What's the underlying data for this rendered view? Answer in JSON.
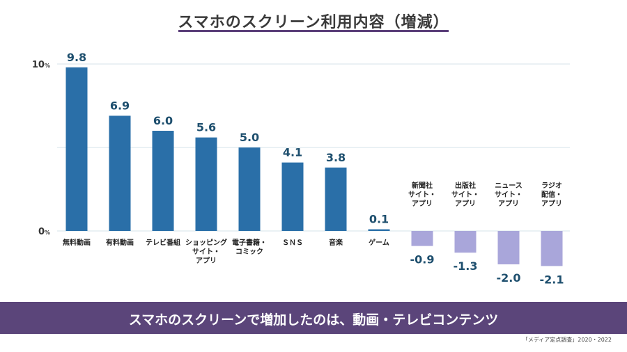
{
  "header": {
    "title": "スマホのスクリーン利用内容（増減）"
  },
  "chart_data": {
    "type": "bar",
    "title": "スマホのスクリーン利用内容（増減）",
    "categories": [
      [
        "無料動画"
      ],
      [
        "有料動画"
      ],
      [
        "テレビ番組"
      ],
      [
        "ショッピング",
        "サイト・",
        "アプリ"
      ],
      [
        "電子書籍・",
        "コミック"
      ],
      [
        "ＳＮＳ"
      ],
      [
        "音楽"
      ],
      [
        "ゲーム"
      ],
      [
        "新聞社",
        "サイト・",
        "アプリ"
      ],
      [
        "出版社",
        "サイト・",
        "アプリ"
      ],
      [
        "ニュース",
        "サイト・",
        "アプリ"
      ],
      [
        "ラジオ",
        "配信・",
        "アプリ"
      ]
    ],
    "values": [
      9.8,
      6.9,
      6.0,
      5.6,
      5.0,
      4.1,
      3.8,
      0.1,
      -0.9,
      -1.3,
      -2.0,
      -2.1
    ],
    "value_labels": [
      "9.8",
      "6.9",
      "6.0",
      "5.6",
      "5.0",
      "4.1",
      "3.8",
      "0.1",
      "-0.9",
      "-1.3",
      "-2.0",
      "-2.1"
    ],
    "y_ticks": [
      {
        "value": 10,
        "num": "10",
        "unit": "%"
      },
      {
        "value": 0,
        "num": "0",
        "unit": "%"
      }
    ],
    "ylim": [
      -3,
      10
    ],
    "grid_lines": [
      0,
      5,
      10
    ],
    "colors": {
      "positive": "#2a6fa8",
      "negative": "#a9a6da",
      "label": "#1e4f6e",
      "grid": "#d4e3ea"
    }
  },
  "footer": {
    "banner_text": "スマホのスクリーンで増加したのは、動画・テレビコンテンツ",
    "source": "「メディア定点調査」2020・2022"
  }
}
